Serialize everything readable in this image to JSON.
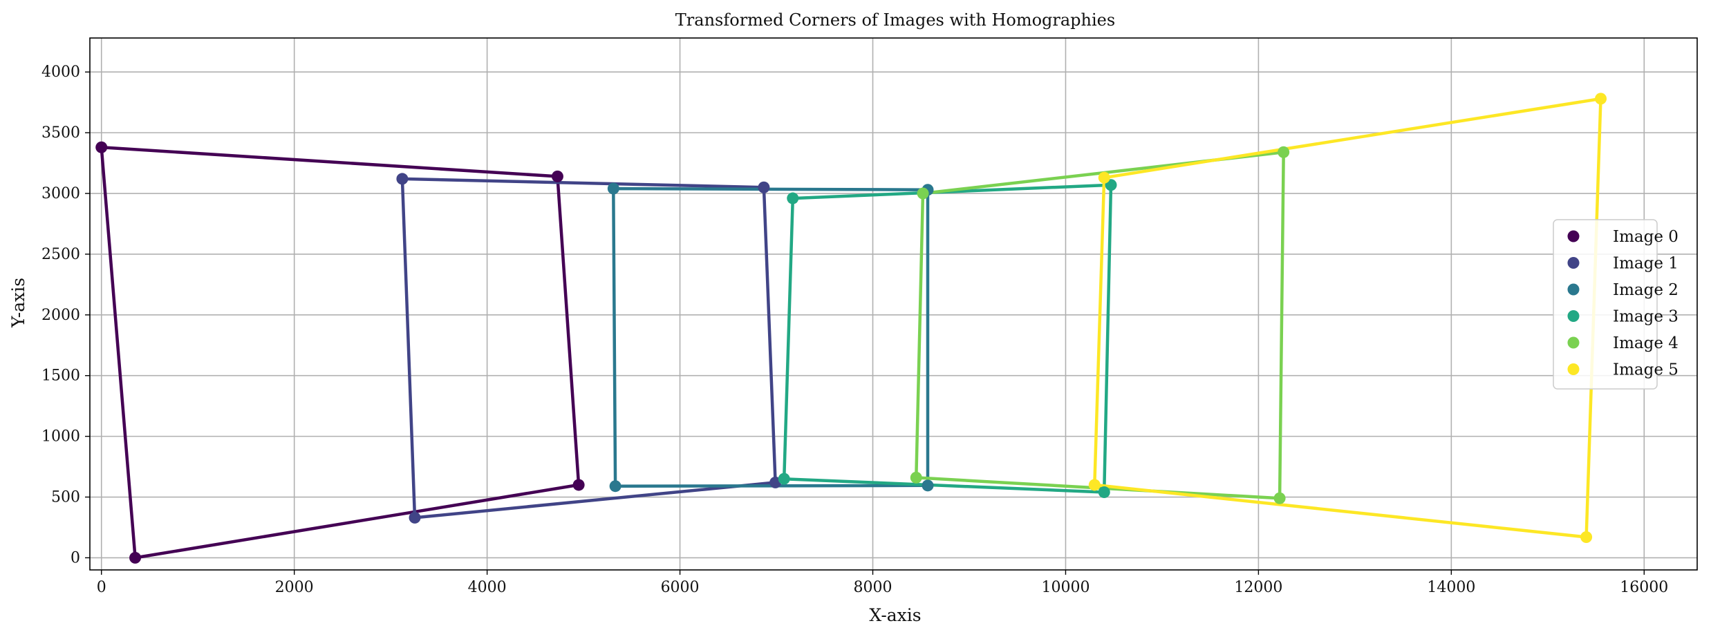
{
  "chart_data": {
    "type": "line",
    "title": "Transformed Corners of Images with Homographies",
    "xlabel": "X-axis",
    "ylabel": "Y-axis",
    "xlim": [
      -120,
      16550
    ],
    "ylim": [
      -100,
      4280
    ],
    "xticks": [
      0,
      2000,
      4000,
      6000,
      8000,
      10000,
      12000,
      14000,
      16000
    ],
    "yticks": [
      0,
      500,
      1000,
      1500,
      2000,
      2500,
      3000,
      3500,
      4000
    ],
    "grid": true,
    "legend_position": "center-right",
    "series": [
      {
        "name": "Image 0",
        "color": "#440154",
        "points": [
          [
            0,
            3380
          ],
          [
            4730,
            3140
          ],
          [
            4950,
            600
          ],
          [
            350,
            0
          ]
        ]
      },
      {
        "name": "Image 1",
        "color": "#414487",
        "points": [
          [
            3120,
            3120
          ],
          [
            6870,
            3050
          ],
          [
            6990,
            620
          ],
          [
            3250,
            330
          ]
        ]
      },
      {
        "name": "Image 2",
        "color": "#2a788e",
        "points": [
          [
            5310,
            3040
          ],
          [
            8570,
            3030
          ],
          [
            8570,
            595
          ],
          [
            5330,
            590
          ]
        ]
      },
      {
        "name": "Image 3",
        "color": "#22a884",
        "points": [
          [
            7170,
            2960
          ],
          [
            10470,
            3070
          ],
          [
            10400,
            540
          ],
          [
            7080,
            650
          ]
        ]
      },
      {
        "name": "Image 4",
        "color": "#7ad151",
        "points": [
          [
            8520,
            3000
          ],
          [
            12260,
            3340
          ],
          [
            12220,
            490
          ],
          [
            8450,
            660
          ]
        ]
      },
      {
        "name": "Image 5",
        "color": "#fde725",
        "points": [
          [
            10400,
            3130
          ],
          [
            15550,
            3780
          ],
          [
            15400,
            170
          ],
          [
            10300,
            600
          ]
        ]
      }
    ]
  }
}
